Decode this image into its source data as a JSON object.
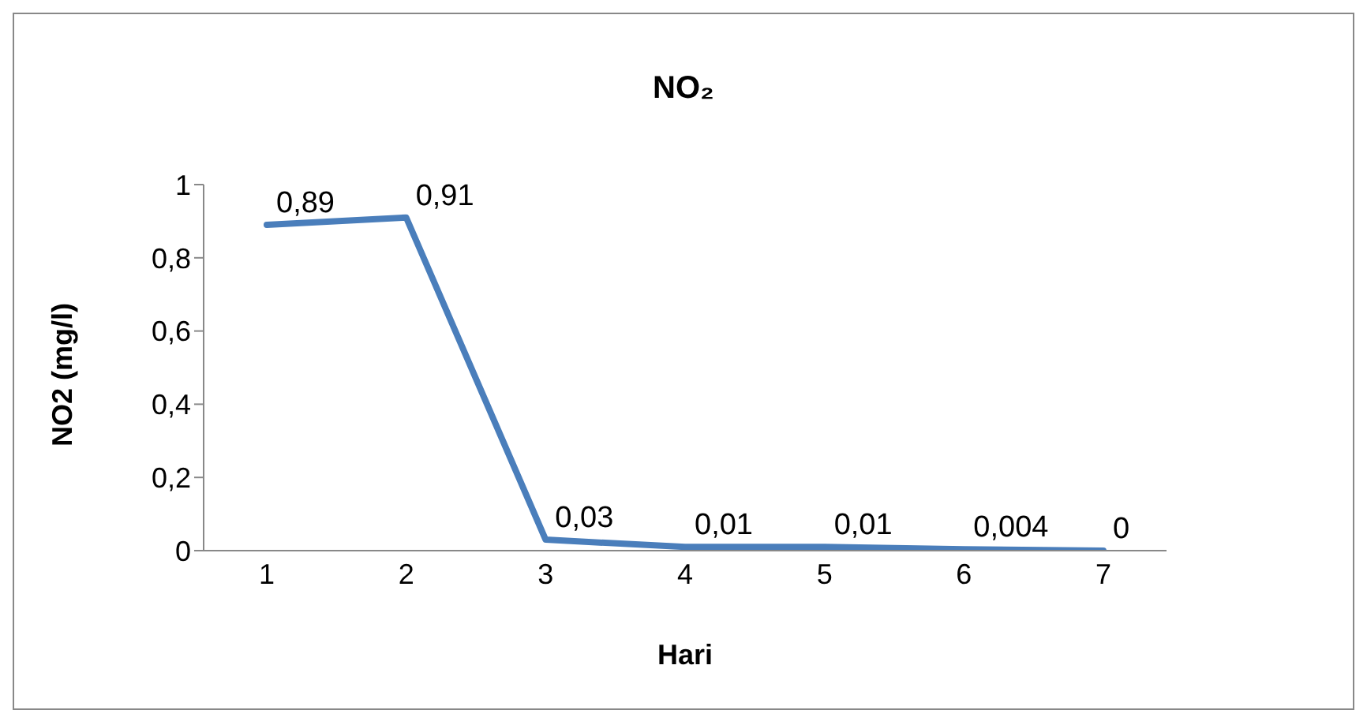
{
  "chart_data": {
    "type": "line",
    "title": "NO₂",
    "xlabel": "Hari",
    "ylabel": "NO2 (mg/l)",
    "categories": [
      "1",
      "2",
      "3",
      "4",
      "5",
      "6",
      "7"
    ],
    "series": [
      {
        "color": "#4a7ebb",
        "values": [
          0.89,
          0.91,
          0.03,
          0.01,
          0.01,
          0.004,
          0
        ],
        "value_labels": [
          "0,89",
          "0,91",
          "0,03",
          "0,01",
          "0,01",
          "0,004",
          "0"
        ]
      }
    ],
    "ylim": [
      0,
      1
    ],
    "yticks": [
      {
        "value": 0,
        "label": "0"
      },
      {
        "value": 0.2,
        "label": "0,2"
      },
      {
        "value": 0.4,
        "label": "0,4"
      },
      {
        "value": 0.6,
        "label": "0,6"
      },
      {
        "value": 0.8,
        "label": "0,8"
      },
      {
        "value": 1,
        "label": "1"
      }
    ],
    "grid": false,
    "legend": false,
    "marker": "none",
    "line_style": "solid"
  }
}
